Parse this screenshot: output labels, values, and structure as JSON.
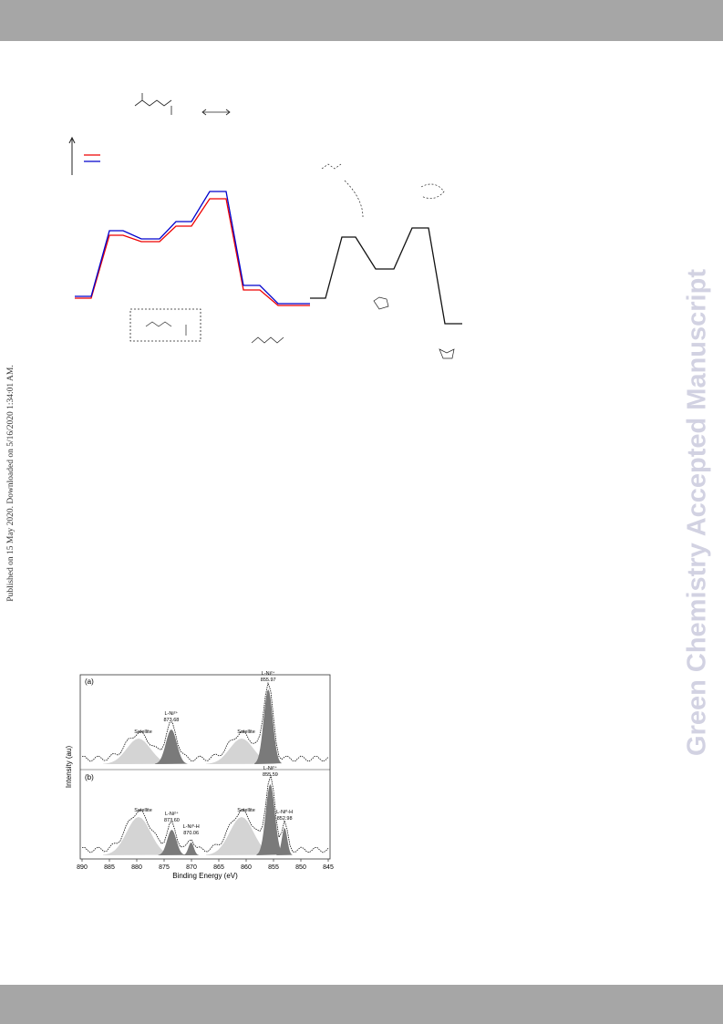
{
  "side_note": "Published on 15 May 2020. Downloaded on 5/16/2020 1:34:01 AM.",
  "watermark": "Green Chemistry Accepted Manuscript",
  "xps_figure": {
    "xlabel": "Binding Energy (eV)",
    "ylabel": "Intensity (au)",
    "xlim": [
      890,
      845
    ],
    "xticks": [
      890,
      885,
      880,
      875,
      870,
      865,
      860,
      855,
      850,
      845
    ],
    "panels": [
      {
        "label": "(a)",
        "satellites": [
          "Satellite",
          "Satellite"
        ],
        "peaks": [
          {
            "name": "L-Ni²⁺",
            "position": {
              "value": 873.68,
              "label": "873.68"
            }
          },
          {
            "name": "L-Ni²⁺",
            "position": {
              "value": 855.97,
              "label": "855.97"
            }
          }
        ]
      },
      {
        "label": "(b)",
        "satellites": [
          "Satellite",
          "Satellite"
        ],
        "peaks": [
          {
            "name": "L-Ni²⁺",
            "position": {
              "value": 873.6,
              "label": "873.60"
            }
          },
          {
            "name": "L-Ni⁰-H",
            "position": {
              "value": 870.06,
              "label": "870.06"
            }
          },
          {
            "name": "L-Ni²⁺",
            "position": {
              "value": 855.59,
              "label": "855.59"
            }
          },
          {
            "name": "L-Ni⁰-H",
            "position": {
              "value": 852.98,
              "label": "852.98"
            }
          }
        ]
      }
    ]
  }
}
